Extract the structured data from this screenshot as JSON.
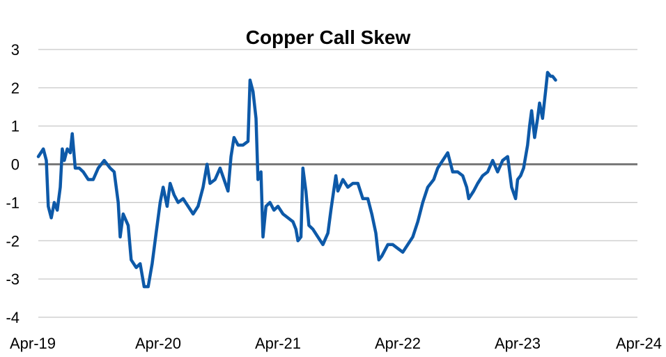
{
  "colors": {
    "series": "#0d59a8",
    "zero_line": "#777777",
    "grid": "#c8c8c8"
  },
  "chart_data": {
    "type": "line",
    "title": "Copper Call Skew",
    "xlabel": "",
    "ylabel": "",
    "ylim": [
      -4,
      3
    ],
    "xlim": [
      0,
      60
    ],
    "grid": "horizontal",
    "legend": "none",
    "x_ticks": [
      {
        "x": 0,
        "label": "Apr-19"
      },
      {
        "x": 12,
        "label": "Apr-20"
      },
      {
        "x": 24,
        "label": "Apr-21"
      },
      {
        "x": 36,
        "label": "Apr-22"
      },
      {
        "x": 48,
        "label": "Apr-23"
      },
      {
        "x": 60,
        "label": "Apr-24"
      }
    ],
    "y_ticks": [
      3,
      2,
      1,
      0,
      -1,
      -2,
      -3,
      -4
    ],
    "series": [
      {
        "x_unit": "months since Apr-19",
        "points": [
          [
            0,
            0.2
          ],
          [
            0.5,
            0.4
          ],
          [
            0.8,
            0.1
          ],
          [
            1.0,
            -1.1
          ],
          [
            1.3,
            -1.4
          ],
          [
            1.6,
            -1.0
          ],
          [
            1.9,
            -1.2
          ],
          [
            2.2,
            -0.6
          ],
          [
            2.4,
            0.4
          ],
          [
            2.6,
            0.1
          ],
          [
            2.9,
            0.4
          ],
          [
            3.2,
            0.3
          ],
          [
            3.4,
            0.8
          ],
          [
            3.7,
            -0.1
          ],
          [
            4.1,
            -0.1
          ],
          [
            4.5,
            -0.2
          ],
          [
            5.0,
            -0.4
          ],
          [
            5.5,
            -0.4
          ],
          [
            6.0,
            -0.1
          ],
          [
            6.6,
            0.1
          ],
          [
            7.2,
            -0.1
          ],
          [
            7.6,
            -0.2
          ],
          [
            8.0,
            -1.0
          ],
          [
            8.2,
            -1.9
          ],
          [
            8.5,
            -1.3
          ],
          [
            9.0,
            -1.6
          ],
          [
            9.3,
            -2.5
          ],
          [
            9.8,
            -2.7
          ],
          [
            10.2,
            -2.6
          ],
          [
            10.6,
            -3.2
          ],
          [
            11.0,
            -3.2
          ],
          [
            11.4,
            -2.6
          ],
          [
            11.8,
            -1.8
          ],
          [
            12.2,
            -1.0
          ],
          [
            12.5,
            -0.6
          ],
          [
            12.9,
            -1.1
          ],
          [
            13.2,
            -0.5
          ],
          [
            13.6,
            -0.8
          ],
          [
            14.0,
            -1.0
          ],
          [
            14.5,
            -0.9
          ],
          [
            15.0,
            -1.1
          ],
          [
            15.5,
            -1.3
          ],
          [
            16.0,
            -1.1
          ],
          [
            16.5,
            -0.6
          ],
          [
            16.9,
            0.0
          ],
          [
            17.2,
            -0.5
          ],
          [
            17.7,
            -0.4
          ],
          [
            18.2,
            -0.1
          ],
          [
            18.6,
            -0.4
          ],
          [
            19.0,
            -0.7
          ],
          [
            19.3,
            0.2
          ],
          [
            19.6,
            0.7
          ],
          [
            20.0,
            0.5
          ],
          [
            20.5,
            0.5
          ],
          [
            21.0,
            0.6
          ],
          [
            21.2,
            2.2
          ],
          [
            21.5,
            1.9
          ],
          [
            21.8,
            1.2
          ],
          [
            22.0,
            -0.4
          ],
          [
            22.3,
            -0.2
          ],
          [
            22.5,
            -1.9
          ],
          [
            22.8,
            -1.1
          ],
          [
            23.2,
            -1.0
          ],
          [
            23.6,
            -1.2
          ],
          [
            24.0,
            -1.1
          ],
          [
            24.5,
            -1.3
          ],
          [
            25.0,
            -1.4
          ],
          [
            25.5,
            -1.5
          ],
          [
            25.8,
            -1.7
          ],
          [
            26.0,
            -2.0
          ],
          [
            26.3,
            -1.9
          ],
          [
            26.5,
            -0.1
          ],
          [
            26.8,
            -0.7
          ],
          [
            27.1,
            -1.6
          ],
          [
            27.5,
            -1.7
          ],
          [
            28.0,
            -1.9
          ],
          [
            28.5,
            -2.1
          ],
          [
            29.0,
            -1.8
          ],
          [
            29.3,
            -1.2
          ],
          [
            29.8,
            -0.3
          ],
          [
            30.0,
            -0.7
          ],
          [
            30.5,
            -0.4
          ],
          [
            31.0,
            -0.6
          ],
          [
            31.5,
            -0.5
          ],
          [
            32.0,
            -0.5
          ],
          [
            32.5,
            -0.9
          ],
          [
            33.0,
            -0.9
          ],
          [
            33.4,
            -1.3
          ],
          [
            33.8,
            -1.8
          ],
          [
            34.1,
            -2.5
          ],
          [
            34.4,
            -2.4
          ],
          [
            35.0,
            -2.1
          ],
          [
            35.5,
            -2.1
          ],
          [
            36.0,
            -2.2
          ],
          [
            36.5,
            -2.3
          ],
          [
            37.0,
            -2.1
          ],
          [
            37.5,
            -1.9
          ],
          [
            38.0,
            -1.5
          ],
          [
            38.5,
            -1.0
          ],
          [
            39.0,
            -0.6
          ],
          [
            39.6,
            -0.4
          ],
          [
            40.0,
            -0.1
          ],
          [
            40.5,
            0.1
          ],
          [
            41.0,
            0.3
          ],
          [
            41.5,
            -0.2
          ],
          [
            42.0,
            -0.2
          ],
          [
            42.5,
            -0.3
          ],
          [
            42.9,
            -0.6
          ],
          [
            43.1,
            -0.9
          ],
          [
            43.6,
            -0.7
          ],
          [
            44.0,
            -0.5
          ],
          [
            44.5,
            -0.3
          ],
          [
            45.0,
            -0.2
          ],
          [
            45.5,
            0.1
          ],
          [
            46.0,
            -0.2
          ],
          [
            46.5,
            0.1
          ],
          [
            47.0,
            0.2
          ],
          [
            47.4,
            -0.6
          ],
          [
            47.8,
            -0.9
          ],
          [
            48.0,
            -0.4
          ],
          [
            48.3,
            -0.3
          ],
          [
            48.6,
            -0.1
          ],
          [
            49.0,
            0.5
          ],
          [
            49.2,
            1.0
          ],
          [
            49.4,
            1.4
          ],
          [
            49.7,
            0.7
          ],
          [
            50.0,
            1.2
          ],
          [
            50.2,
            1.6
          ],
          [
            50.5,
            1.2
          ],
          [
            50.8,
            1.9
          ],
          [
            51.0,
            2.4
          ],
          [
            51.3,
            2.3
          ],
          [
            51.5,
            2.3
          ],
          [
            51.8,
            2.2
          ]
        ]
      }
    ]
  }
}
